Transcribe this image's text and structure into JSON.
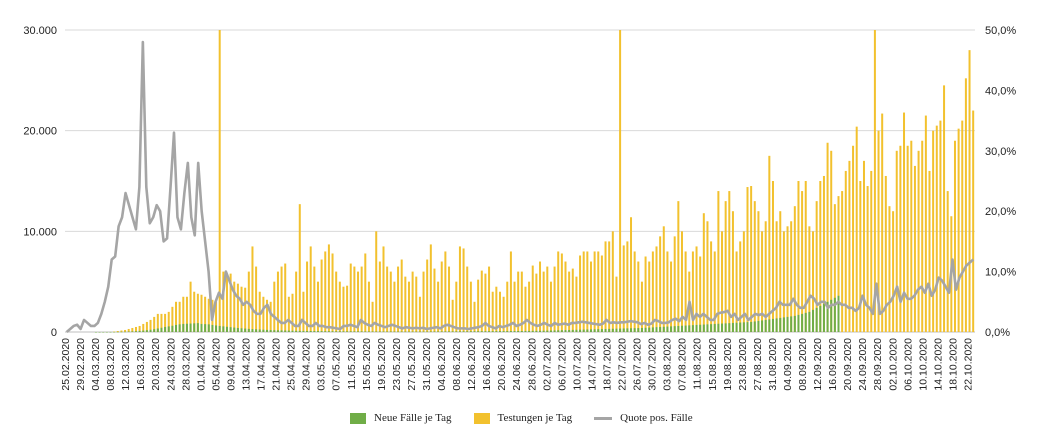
{
  "chart_data": {
    "type": "bar",
    "title": "",
    "xlabel": "",
    "ylabel": "",
    "ylim_left": [
      0,
      30000
    ],
    "ylim_right": [
      0,
      0.5
    ],
    "y_ticks_left": [
      "0",
      "10.000",
      "20.000",
      "30.000"
    ],
    "y_ticks_right": [
      "0,0%",
      "10,0%",
      "20,0%",
      "30,0%",
      "40,0%",
      "50,0%"
    ],
    "x_tick_labels": [
      "25.02.2020",
      "29.02.2020",
      "04.03.2020",
      "08.03.2020",
      "12.03.2020",
      "16.03.2020",
      "20.03.2020",
      "24.03.2020",
      "28.03.2020",
      "01.04.2020",
      "05.04.2020",
      "09.04.2020",
      "13.04.2020",
      "17.04.2020",
      "21.04.2020",
      "25.04.2020",
      "29.04.2020",
      "03.05.2020",
      "07.05.2020",
      "11.05.2020",
      "15.05.2020",
      "19.05.2020",
      "23.05.2020",
      "27.05.2020",
      "31.05.2020",
      "04.06.2020",
      "08.06.2020",
      "12.06.2020",
      "16.06.2020",
      "20.06.2020",
      "24.06.2020",
      "28.06.2020",
      "02.07.2020",
      "06.07.2020",
      "10.07.2020",
      "14.07.2020",
      "18.07.2020",
      "22.07.2020",
      "26.07.2020",
      "30.07.2020",
      "03.08.2020",
      "07.08.2020",
      "11.08.2020",
      "15.08.2020",
      "19.08.2020",
      "23.08.2020",
      "27.08.2020",
      "31.08.2020",
      "04.09.2020",
      "08.09.2020",
      "12.09.2020",
      "16.09.2020",
      "20.09.2020",
      "24.09.2020",
      "28.09.2020",
      "02.10.2020",
      "06.10.2020",
      "10.10.2020",
      "14.10.2020",
      "18.10.2020",
      "22.10.2020"
    ],
    "grid": true,
    "legend_position": "bottom",
    "series": [
      {
        "name": "Neue Fälle je Tag",
        "color": "#70ad47",
        "axis": "left",
        "values": [
          0,
          0,
          0,
          0,
          0,
          0,
          0,
          0,
          1,
          1,
          2,
          3,
          5,
          8,
          12,
          20,
          30,
          45,
          60,
          80,
          110,
          140,
          180,
          220,
          280,
          350,
          420,
          500,
          560,
          620,
          700,
          760,
          800,
          820,
          840,
          860,
          880,
          800,
          780,
          760,
          700,
          650,
          600,
          560,
          520,
          480,
          440,
          400,
          370,
          340,
          310,
          290,
          270,
          250,
          230,
          210,
          195,
          180,
          170,
          160,
          150,
          140,
          130,
          120,
          115,
          110,
          105,
          100,
          95,
          90,
          85,
          80,
          78,
          75,
          72,
          70,
          68,
          66,
          64,
          62,
          60,
          58,
          56,
          54,
          52,
          50,
          48,
          46,
          45,
          44,
          43,
          42,
          41,
          40,
          40,
          40,
          40,
          40,
          42,
          45,
          48,
          50,
          52,
          55,
          58,
          60,
          62,
          64,
          66,
          68,
          70,
          72,
          74,
          76,
          78,
          80,
          82,
          84,
          86,
          88,
          90,
          92,
          94,
          96,
          98,
          100,
          105,
          110,
          115,
          120,
          125,
          130,
          140,
          150,
          160,
          170,
          180,
          190,
          200,
          210,
          220,
          230,
          240,
          250,
          260,
          270,
          280,
          290,
          300,
          310,
          320,
          330,
          340,
          350,
          360,
          370,
          380,
          390,
          400,
          420,
          440,
          460,
          480,
          500,
          520,
          540,
          560,
          580,
          600,
          620,
          640,
          660,
          680,
          700,
          720,
          740,
          760,
          780,
          800,
          820,
          840,
          860,
          880,
          900,
          920,
          940,
          960,
          980,
          1000,
          1050,
          1100,
          1150,
          1200,
          1250,
          1300,
          1350,
          1400,
          1450,
          1500,
          1550,
          1600,
          1700,
          1800,
          1900,
          2000,
          2200,
          2400,
          2600,
          2800,
          3000,
          3200,
          3400,
          3600
        ]
      },
      {
        "name": "Testungen je Tag",
        "color": "#f2c12e",
        "axis": "left",
        "values": [
          0,
          0,
          0,
          0,
          0,
          0,
          0,
          0,
          0,
          0,
          0,
          0,
          0,
          50,
          100,
          150,
          200,
          300,
          400,
          500,
          600,
          800,
          1000,
          1200,
          1500,
          1800,
          1800,
          1800,
          2000,
          2500,
          3000,
          3000,
          3500,
          3500,
          5000,
          4000,
          3800,
          3700,
          3500,
          3300,
          3200,
          3000,
          30000,
          6000,
          5500,
          5800,
          5000,
          4800,
          4500,
          4400,
          6000,
          8500,
          6500,
          4000,
          3500,
          3200,
          3000,
          5000,
          6000,
          6500,
          6800,
          3500,
          3800,
          6000,
          12700,
          4000,
          7000,
          8500,
          6500,
          5000,
          7200,
          8000,
          8700,
          7800,
          6000,
          5000,
          4500,
          4600,
          6800,
          6500,
          6000,
          6500,
          7800,
          5000,
          3000,
          10000,
          7000,
          8500,
          6500,
          6000,
          5000,
          6500,
          7200,
          5500,
          5000,
          6000,
          5500,
          3500,
          6000,
          7200,
          8700,
          6300,
          5000,
          7000,
          8000,
          6500,
          3200,
          5000,
          8500,
          8300,
          6500,
          5000,
          3000,
          5200,
          6100,
          5800,
          6500,
          4000,
          4500,
          4000,
          3500,
          5000,
          8000,
          5000,
          6000,
          6000,
          4500,
          5000,
          6600,
          5800,
          7000,
          6000,
          6500,
          5000,
          6500,
          8000,
          7800,
          7000,
          6000,
          6300,
          5500,
          7600,
          8000,
          8000,
          7000,
          8000,
          8000,
          7600,
          9000,
          9000,
          10000,
          5500,
          30000,
          8600,
          9000,
          11400,
          8000,
          7000,
          5000,
          7500,
          7000,
          8000,
          8500,
          9500,
          10500,
          8000,
          7000,
          9500,
          13000,
          10000,
          8000,
          6000,
          8000,
          8500,
          7500,
          11800,
          11000,
          9000,
          8000,
          14000,
          10000,
          13000,
          14000,
          12000,
          8000,
          9000,
          10000,
          14400,
          14500,
          13000,
          12000,
          10000,
          11000,
          17500,
          15000,
          11000,
          12000,
          10000,
          10500,
          11000,
          12500,
          15000,
          14000,
          15000,
          10500,
          10000,
          13000,
          15000,
          15500,
          18800,
          18000,
          12700,
          13500,
          14000,
          16000,
          17000,
          18500,
          20400,
          15000,
          17000,
          14500,
          16000,
          30000,
          20000,
          21700,
          15500,
          12500,
          12000,
          18000,
          18500,
          21800,
          18500,
          19000,
          16500,
          18000,
          19000,
          21500,
          16000,
          20000,
          20500,
          21000,
          24500,
          14000,
          11500,
          19000,
          20200,
          21000,
          25200,
          28000,
          22000
        ]
      },
      {
        "name": "Quote pos. Fälle",
        "color": "#a5a5a5",
        "axis": "right",
        "values": [
          0,
          0.005,
          0.01,
          0.012,
          0.005,
          0.02,
          0.015,
          0.01,
          0.01,
          0.015,
          0.03,
          0.05,
          0.075,
          0.12,
          0.125,
          0.175,
          0.19,
          0.23,
          0.21,
          0.19,
          0.17,
          0.24,
          0.48,
          0.24,
          0.18,
          0.19,
          0.21,
          0.2,
          0.15,
          0.155,
          0.24,
          0.33,
          0.19,
          0.17,
          0.23,
          0.28,
          0.19,
          0.16,
          0.28,
          0.2,
          0.15,
          0.1,
          0.02,
          0.05,
          0.065,
          0.055,
          0.1,
          0.085,
          0.07,
          0.06,
          0.055,
          0.045,
          0.05,
          0.045,
          0.035,
          0.03,
          0.03,
          0.04,
          0.045,
          0.03,
          0.025,
          0.02,
          0.015,
          0.015,
          0.02,
          0.015,
          0.01,
          0.01,
          0.02,
          0.015,
          0.01,
          0.01,
          0.015,
          0.01,
          0.01,
          0.008,
          0.008,
          0.007,
          0.006,
          0.005,
          0.01,
          0.01,
          0.012,
          0.01,
          0.008,
          0.02,
          0.015,
          0.012,
          0.01,
          0.015,
          0.012,
          0.01,
          0.008,
          0.01,
          0.012,
          0.01,
          0.008,
          0.006,
          0.008,
          0.007,
          0.006,
          0.007,
          0.006,
          0.007,
          0.005,
          0.006,
          0.007,
          0.008,
          0.006,
          0.01,
          0.012,
          0.01,
          0.008,
          0.006,
          0.006,
          0.006,
          0.005,
          0.006,
          0.007,
          0.008,
          0.01,
          0.015,
          0.01,
          0.008,
          0.006,
          0.01,
          0.008,
          0.01,
          0.012,
          0.015,
          0.01,
          0.012,
          0.015,
          0.02,
          0.015,
          0.012,
          0.01,
          0.012,
          0.015,
          0.012,
          0.01,
          0.015,
          0.012,
          0.013,
          0.014,
          0.012,
          0.015,
          0.015,
          0.016,
          0.017,
          0.016,
          0.015,
          0.014,
          0.013,
          0.012,
          0.014,
          0.02,
          0.015,
          0.016,
          0.015,
          0.016,
          0.016,
          0.017,
          0.018,
          0.017,
          0.016,
          0.013,
          0.015,
          0.012,
          0.014,
          0.02,
          0.018,
          0.015,
          0.015,
          0.016,
          0.02,
          0.022,
          0.018,
          0.025,
          0.02,
          0.05,
          0.02,
          0.03,
          0.025,
          0.03,
          0.025,
          0.02,
          0.02,
          0.03,
          0.032,
          0.033,
          0.035,
          0.025,
          0.03,
          0.02,
          0.025,
          0.03,
          0.02,
          0.025,
          0.03,
          0.028,
          0.03,
          0.025,
          0.03,
          0.035,
          0.04,
          0.05,
          0.045,
          0.045,
          0.045,
          0.055,
          0.045,
          0.04,
          0.04,
          0.05,
          0.06,
          0.055,
          0.045,
          0.05,
          0.05,
          0.04,
          0.045,
          0.045,
          0.05,
          0.045,
          0.045,
          0.04,
          0.04,
          0.035,
          0.04,
          0.06,
          0.045,
          0.04,
          0.03,
          0.08,
          0.03,
          0.035,
          0.045,
          0.05,
          0.06,
          0.075,
          0.05,
          0.065,
          0.055,
          0.055,
          0.06,
          0.07,
          0.075,
          0.065,
          0.08,
          0.06,
          0.07,
          0.09,
          0.085,
          0.075,
          0.065,
          0.12,
          0.07,
          0.09,
          0.1,
          0.11,
          0.115,
          0.12
        ]
      }
    ]
  }
}
